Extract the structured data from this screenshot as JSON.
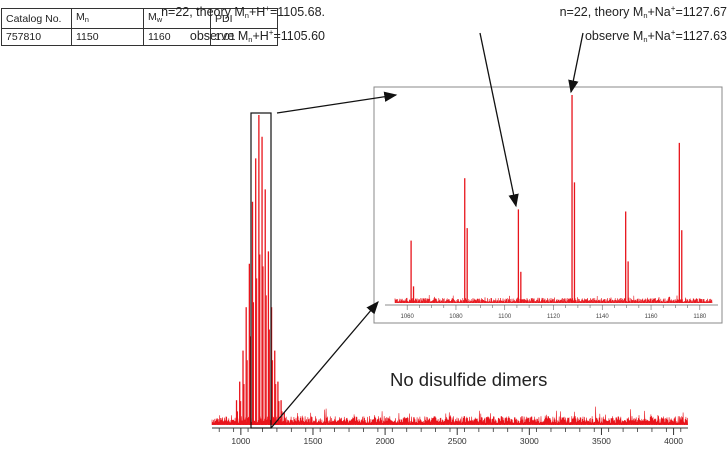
{
  "table": {
    "headers": [
      "Catalog No.",
      "M",
      "M",
      "PDI"
    ],
    "header_subscripts": [
      "",
      "n",
      "w",
      ""
    ],
    "row": [
      "757810",
      "1150",
      "1160",
      "1.01"
    ]
  },
  "annotations": {
    "peak1_line1": "n=22, theory Mn+H+=1105.68.",
    "peak1_line2": "observe Mn+H+=1105.60",
    "peak2_line1": "n=22, theory Mn+Na+=1127.67",
    "peak2_line2": "observe Mn+Na+=1127.63",
    "no_dimers": "No disulfide dimers"
  },
  "chart_data": [
    {
      "type": "line",
      "name_hint": "main mass spectrum",
      "xlim": [
        800,
        4100
      ],
      "x_ticks": [
        "1000",
        "1500",
        "2000",
        "2500",
        "3000",
        "3500",
        "4000"
      ],
      "color": "#e8141b",
      "peaks": [
        {
          "x": 970,
          "y": 0.08
        },
        {
          "x": 992,
          "y": 0.14
        },
        {
          "x": 1015,
          "y": 0.24
        },
        {
          "x": 1037,
          "y": 0.38
        },
        {
          "x": 1059,
          "y": 0.52
        },
        {
          "x": 1081,
          "y": 0.72
        },
        {
          "x": 1103,
          "y": 0.86
        },
        {
          "x": 1125,
          "y": 1.0
        },
        {
          "x": 1147,
          "y": 0.93
        },
        {
          "x": 1169,
          "y": 0.76
        },
        {
          "x": 1191,
          "y": 0.56
        },
        {
          "x": 1213,
          "y": 0.38
        },
        {
          "x": 1235,
          "y": 0.24
        },
        {
          "x": 1257,
          "y": 0.14
        },
        {
          "x": 1279,
          "y": 0.08
        },
        {
          "x": 1301,
          "y": 0.04
        }
      ],
      "highlight_box_x": [
        1060,
        1180
      ]
    },
    {
      "type": "line",
      "name_hint": "zoomed inset",
      "xlim": [
        1055,
        1185
      ],
      "x_ticks": [
        "1060",
        "1080",
        "1100",
        "1120",
        "1140",
        "1160",
        "1180"
      ],
      "color": "#e8141b",
      "peaks": [
        {
          "x": 1061.6,
          "y": 0.3
        },
        {
          "x": 1062.6,
          "y": 0.08
        },
        {
          "x": 1083.6,
          "y": 0.6
        },
        {
          "x": 1084.6,
          "y": 0.36
        },
        {
          "x": 1105.6,
          "y": 0.45
        },
        {
          "x": 1106.6,
          "y": 0.15
        },
        {
          "x": 1127.6,
          "y": 1.0
        },
        {
          "x": 1128.6,
          "y": 0.58
        },
        {
          "x": 1149.6,
          "y": 0.44
        },
        {
          "x": 1150.6,
          "y": 0.2
        },
        {
          "x": 1171.6,
          "y": 0.77
        },
        {
          "x": 1172.6,
          "y": 0.35
        }
      ]
    }
  ]
}
